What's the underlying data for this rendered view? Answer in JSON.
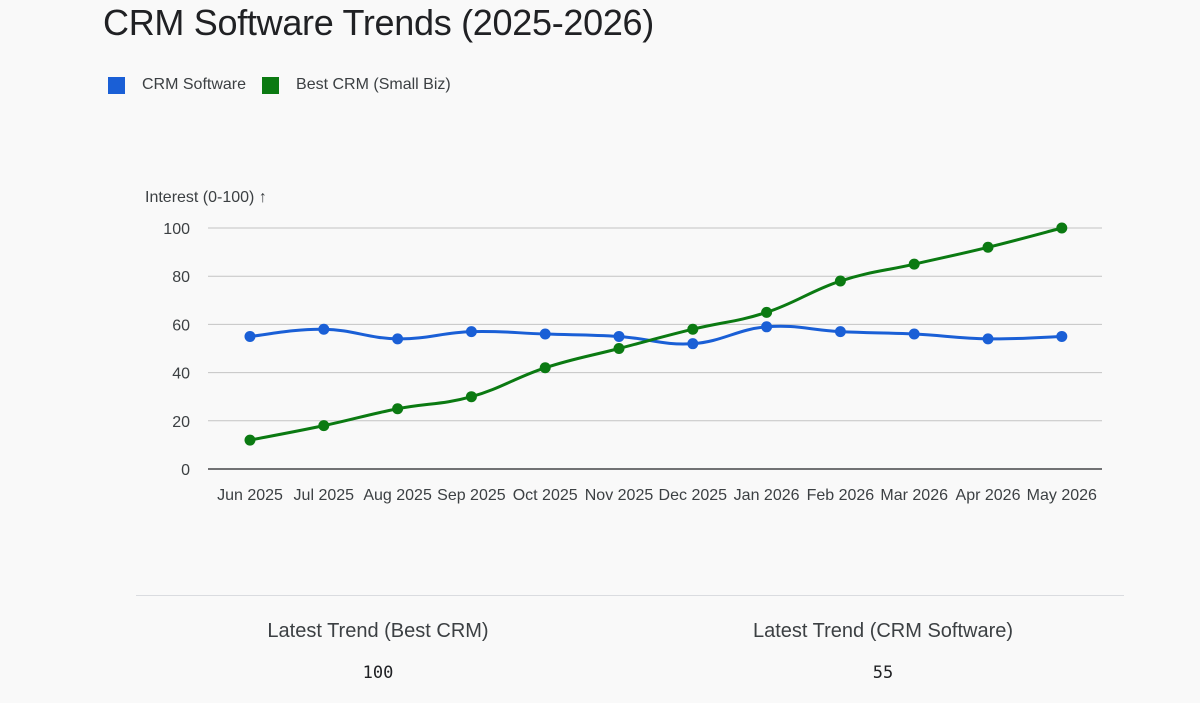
{
  "title": "CRM Software Trends (2025-2026)",
  "chart_data": {
    "type": "line",
    "ylabel": "Interest (0-100) ↑",
    "ylim": [
      0,
      100
    ],
    "yticks": [
      0,
      20,
      40,
      60,
      80,
      100
    ],
    "grid": true,
    "legend_position": "top-left",
    "categories": [
      "Jun 2025",
      "Jul 2025",
      "Aug 2025",
      "Sep 2025",
      "Oct 2025",
      "Nov 2025",
      "Dec 2025",
      "Jan 2026",
      "Feb 2026",
      "Mar 2026",
      "Apr 2026",
      "May 2026"
    ],
    "series": [
      {
        "name": "CRM Software",
        "color": "#1a5fd6",
        "values": [
          55,
          58,
          54,
          57,
          56,
          55,
          52,
          59,
          57,
          56,
          54,
          55
        ]
      },
      {
        "name": "Best CRM (Small Biz)",
        "color": "#0b7a12",
        "values": [
          12,
          18,
          25,
          30,
          42,
          50,
          58,
          65,
          78,
          85,
          92,
          100
        ]
      }
    ]
  },
  "stats": [
    {
      "label": "Latest Trend (Best CRM)",
      "value": "100"
    },
    {
      "label": "Latest Trend (CRM Software)",
      "value": "55"
    }
  ]
}
